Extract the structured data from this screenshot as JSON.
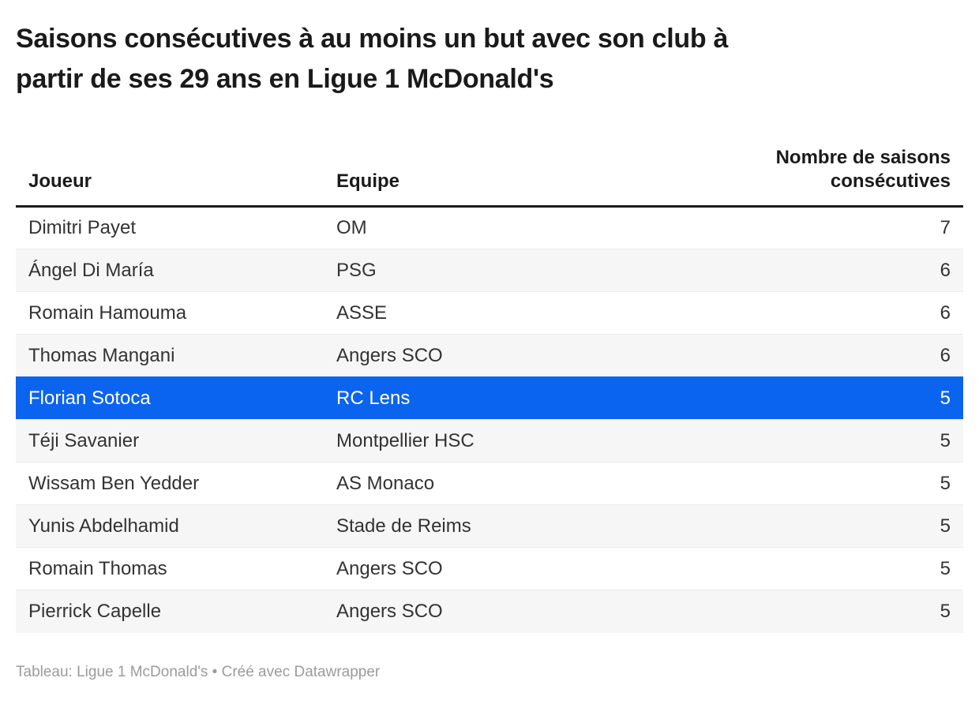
{
  "page": {
    "title_lines": [
      "Saisons consécutives à au moins un but avec son club à",
      "partir de ses 29 ans en Ligue 1 McDonald's"
    ],
    "footer": "Tableau: Ligue 1 McDonald's • Créé avec Datawrapper"
  },
  "chart_data": {
    "type": "table",
    "title": "Saisons consécutives à au moins un but avec son club à partir de ses 29 ans en Ligue 1 McDonald's",
    "columns": [
      "Joueur",
      "Equipe",
      "Nombre de saisons consécutives"
    ],
    "rows": [
      [
        "Dimitri Payet",
        "OM",
        7
      ],
      [
        "Ángel Di María",
        "PSG",
        6
      ],
      [
        "Romain Hamouma",
        "ASSE",
        6
      ],
      [
        "Thomas Mangani",
        "Angers SCO",
        6
      ],
      [
        "Florian Sotoca",
        "RC Lens",
        5
      ],
      [
        "Téji Savanier",
        "Montpellier HSC",
        5
      ],
      [
        "Wissam Ben Yedder",
        "AS Monaco",
        5
      ],
      [
        "Yunis Abdelhamid",
        "Stade de Reims",
        5
      ],
      [
        "Romain Thomas",
        "Angers SCO",
        5
      ],
      [
        "Pierrick Capelle",
        "Angers SCO",
        5
      ]
    ],
    "highlighted_row_index": 4,
    "highlighted_row_player": "Florian Sotoca",
    "legend_position": "none",
    "grid": "zebra-rows"
  },
  "theme": {
    "title_color": "#1a1a1a",
    "cell_text_color": "#333333",
    "zebra_row_color": "#f6f6f6",
    "highlight_color": "#0b64ef",
    "highlight_text_color": "#ffffff",
    "header_rule_color": "#1a1a1a",
    "row_divider_color": "#ececec",
    "footer_text_color": "#9b9b9b"
  }
}
